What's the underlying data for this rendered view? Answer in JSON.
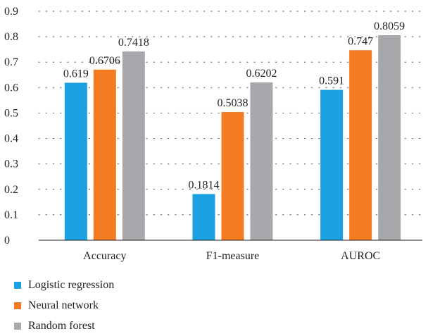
{
  "chart_data": {
    "type": "bar",
    "categories": [
      "Accuracy",
      "F1-measure",
      "AUROC"
    ],
    "series": [
      {
        "name": "Logistic regression",
        "color": "#1ba1e2",
        "values": [
          0.619,
          0.1814,
          0.591
        ],
        "labels": [
          "0.619",
          "0.1814",
          "0.591"
        ]
      },
      {
        "name": "Neural network",
        "color": "#f47b20",
        "values": [
          0.6706,
          0.5038,
          0.747
        ],
        "labels": [
          "0.6706",
          "0.5038",
          "0.747"
        ]
      },
      {
        "name": "Random forest",
        "color": "#a6a8ab",
        "values": [
          0.7418,
          0.6202,
          0.8059
        ],
        "labels": [
          "0.7418",
          "0.6202",
          "0.8059"
        ]
      }
    ],
    "yticks": [
      "0",
      "0.1",
      "0.2",
      "0.3",
      "0.4",
      "0.5",
      "0.6",
      "0.7",
      "0.8",
      "0.9"
    ],
    "ylim": [
      0,
      0.9
    ],
    "grid": true,
    "legend_position": "bottom-left"
  }
}
